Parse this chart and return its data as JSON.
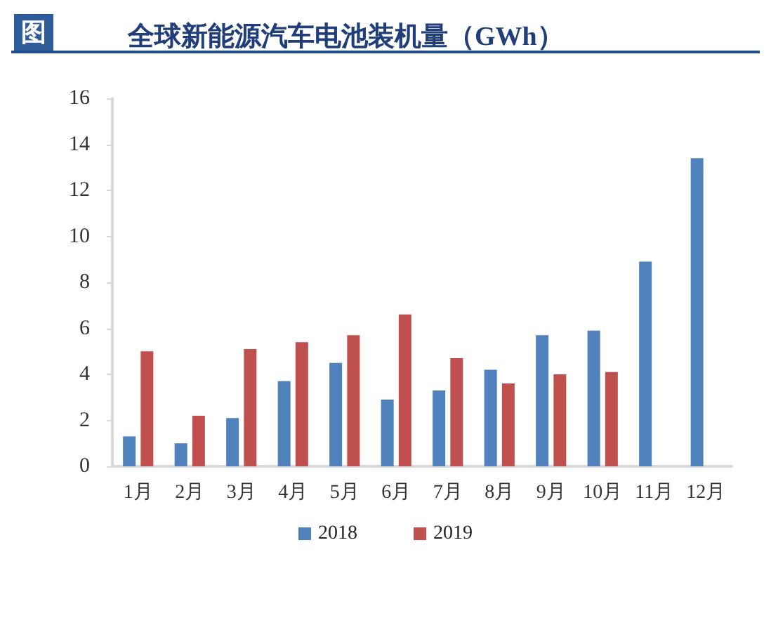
{
  "chart_data": {
    "type": "bar",
    "title": "全球新能源汽车电池装机量（GWh）",
    "annotations": [
      "图"
    ],
    "categories": [
      "1月",
      "2月",
      "3月",
      "4月",
      "5月",
      "6月",
      "7月",
      "8月",
      "9月",
      "10月",
      "11月",
      "12月"
    ],
    "series": [
      {
        "name": "2018",
        "color": "#4f81bd",
        "values": [
          1.3,
          1.0,
          2.1,
          3.7,
          4.5,
          2.9,
          3.3,
          4.2,
          5.7,
          5.9,
          8.9,
          13.4
        ]
      },
      {
        "name": "2019",
        "color": "#c0504d",
        "values": [
          5.0,
          2.2,
          5.1,
          5.4,
          5.7,
          6.6,
          4.7,
          3.6,
          4.0,
          4.1,
          null,
          null
        ]
      }
    ],
    "ylim": [
      0,
      16
    ],
    "yticks": [
      0,
      2,
      4,
      6,
      8,
      10,
      12,
      14,
      16
    ],
    "grid": false,
    "legend": "bottom"
  }
}
